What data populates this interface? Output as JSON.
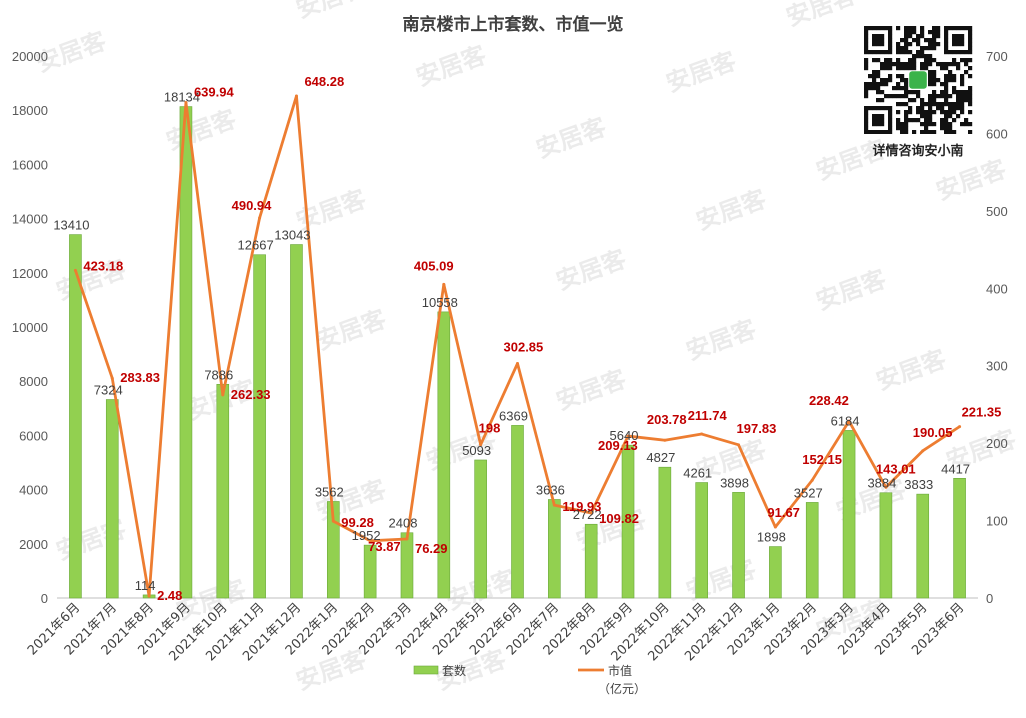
{
  "chart_data": {
    "type": "bar",
    "title": "南京楼市上市套数、市值一览",
    "categories": [
      "2021年6月",
      "2021年7月",
      "2021年8月",
      "2021年9月",
      "2021年10月",
      "2021年11月",
      "2021年12月",
      "2022年1月",
      "2022年2月",
      "2022年3月",
      "2022年4月",
      "2022年5月",
      "2022年6月",
      "2022年7月",
      "2022年8月",
      "2022年9月",
      "2022年10月",
      "2022年11月",
      "2022年12月",
      "2023年1月",
      "2023年2月",
      "2023年3月",
      "2023年4月",
      "2023年5月",
      "2023年6月"
    ],
    "series": [
      {
        "name": "套数",
        "kind": "bar",
        "axis": "left",
        "color": "#92D050",
        "values": [
          13410,
          7324,
          114,
          18134,
          7886,
          12667,
          13043,
          3562,
          1952,
          2408,
          10558,
          5093,
          6369,
          3636,
          2722,
          5640,
          4827,
          4261,
          3898,
          1898,
          3527,
          6184,
          3884,
          3833,
          4417
        ],
        "labels": [
          "13410",
          "7324",
          "114",
          "18134",
          "7886",
          "12667",
          "13043",
          "3562",
          "1952",
          "2408",
          "10558",
          "5093",
          "6369",
          "3636",
          "2722",
          "5640",
          "4827",
          "4261",
          "3898",
          "1898",
          "3527",
          "6184",
          "3884",
          "3833",
          "4417"
        ]
      },
      {
        "name": "市值",
        "kind": "line",
        "axis": "right",
        "color": "#ED7D31",
        "values": [
          423.18,
          283.83,
          2.48,
          639.94,
          262.33,
          490.94,
          648.28,
          99.28,
          73.87,
          76.29,
          405.09,
          198,
          302.85,
          119.93,
          109.82,
          209.13,
          203.78,
          211.74,
          197.83,
          91.67,
          152.15,
          228.42,
          143.01,
          190.05,
          221.35
        ],
        "labels": [
          "423.18",
          "283.83",
          "2.48",
          "639.94",
          "262.33",
          "490.94",
          "648.28",
          "99.28",
          "73.87",
          "76.29",
          "405.09",
          "198",
          "302.85",
          "119.93",
          "109.82",
          "209.13",
          "203.78",
          "211.74",
          "197.83",
          "91.67",
          "152.15",
          "228.42",
          "143.01",
          "190.05",
          "221.35"
        ]
      }
    ],
    "y_left": {
      "min": 0,
      "max": 20000,
      "ticks": [
        "0",
        "2000",
        "4000",
        "6000",
        "8000",
        "10000",
        "12000",
        "14000",
        "16000",
        "18000",
        "20000"
      ]
    },
    "y_right": {
      "min": 0,
      "max": 700,
      "ticks": [
        "0",
        "100",
        "200",
        "300",
        "400",
        "500",
        "600",
        "700"
      ]
    },
    "legend": {
      "placement": "bottom",
      "items": [
        "套数",
        "市值"
      ],
      "line_unit": "（亿元）"
    },
    "grid": false,
    "watermark": "安居客"
  },
  "qr": {
    "caption": "详情咨询安小南"
  }
}
